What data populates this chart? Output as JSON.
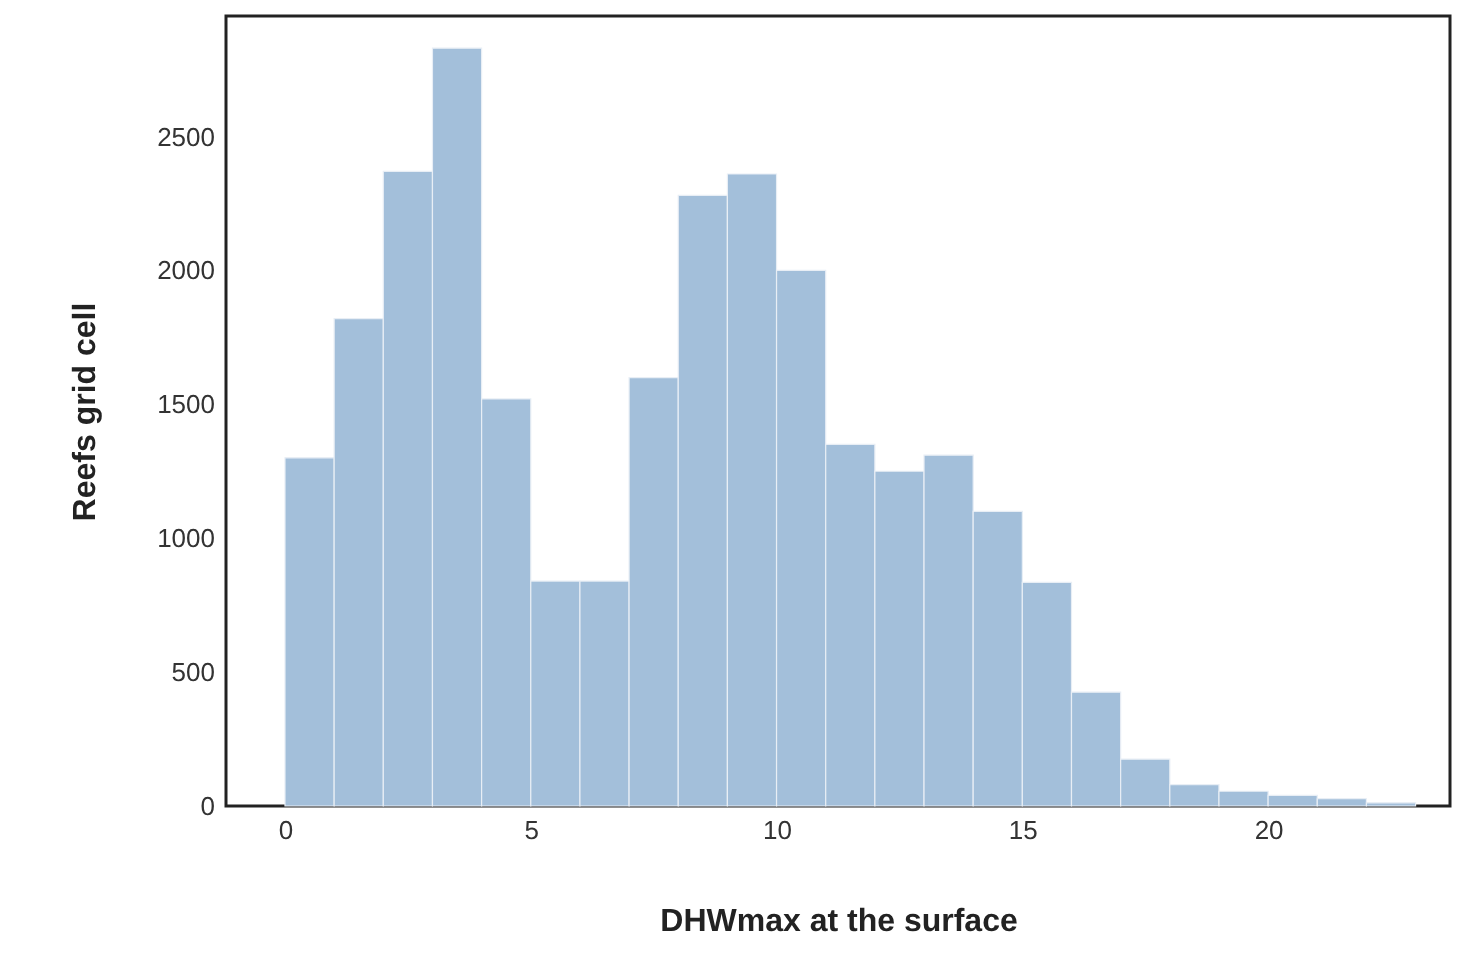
{
  "chart_data": {
    "type": "histogram",
    "xlabel": "DHWmax at the surface",
    "ylabel": "Reefs grid cell",
    "bins": [
      0,
      1,
      2,
      3,
      4,
      5,
      6,
      7,
      8,
      9,
      10,
      11,
      12,
      13,
      14,
      15,
      16,
      17,
      18,
      19,
      20,
      21,
      22,
      23
    ],
    "values": [
      1300,
      1820,
      2370,
      2830,
      1520,
      840,
      840,
      1600,
      2280,
      2360,
      2000,
      1350,
      1250,
      1310,
      1100,
      835,
      425,
      175,
      80,
      55,
      40,
      27,
      12
    ],
    "color": "#a3bfda",
    "xlim": [
      -1.2,
      23.7
    ],
    "xticks": [
      0,
      5,
      10,
      15,
      20
    ],
    "ylim": [
      0,
      2950
    ],
    "yticks": [
      0,
      500,
      1000,
      1500,
      2000,
      2500
    ],
    "grid": false
  }
}
